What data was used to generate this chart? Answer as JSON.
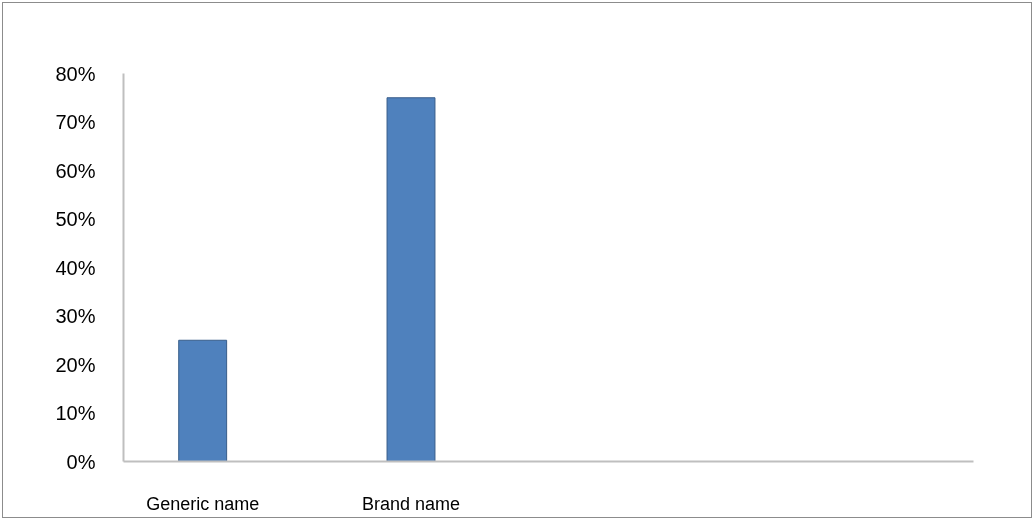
{
  "chart_data": {
    "type": "bar",
    "categories": [
      "Generic name",
      "Brand name",
      null,
      null
    ],
    "values": [
      25,
      75,
      null,
      null
    ],
    "color": "#4f81bd",
    "ylim": [
      0,
      80
    ],
    "yticks": [
      {
        "value": 0,
        "label": "0%"
      },
      {
        "value": 10,
        "label": "10%"
      },
      {
        "value": 20,
        "label": "20%"
      },
      {
        "value": 30,
        "label": "30%"
      },
      {
        "value": 40,
        "label": "40%"
      },
      {
        "value": 50,
        "label": "50%"
      },
      {
        "value": 60,
        "label": "60%"
      },
      {
        "value": 70,
        "label": "70%"
      },
      {
        "value": 80,
        "label": "80%"
      }
    ]
  }
}
